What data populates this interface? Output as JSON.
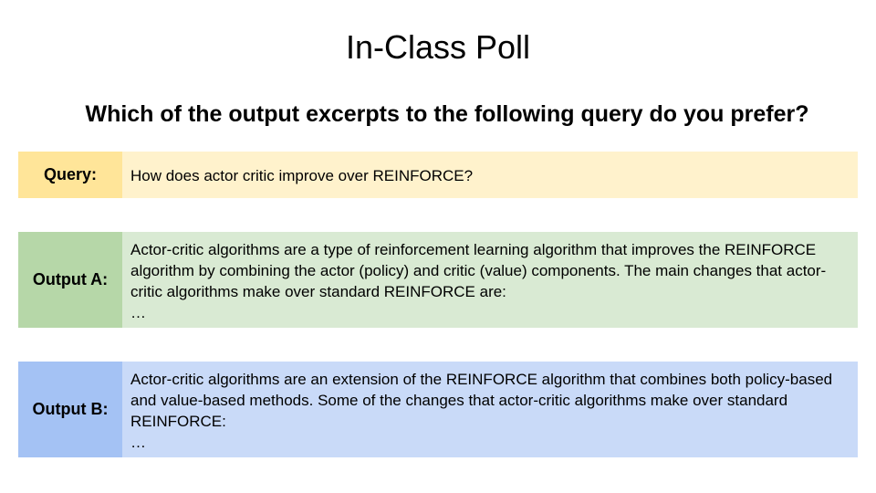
{
  "slide": {
    "title": "In-Class Poll",
    "question": "Which of the output excerpts to the following query do you prefer?"
  },
  "colors": {
    "query_label_bg": "#ffe599",
    "query_content_bg": "#fff2cc",
    "output_a_label_bg": "#b6d7a8",
    "output_a_content_bg": "#d9ead3",
    "output_b_label_bg": "#a4c2f4",
    "output_b_content_bg": "#c9daf8"
  },
  "rows": {
    "query": {
      "label": "Query:",
      "text": "How does actor critic improve over REINFORCE?"
    },
    "output_a": {
      "label": "Output A:",
      "text": "Actor-critic algorithms are a type of reinforcement learning algorithm that improves the REINFORCE algorithm by combining the actor (policy) and critic (value) components. The main changes that actor-critic algorithms make over standard REINFORCE are:",
      "ellipsis": "…"
    },
    "output_b": {
      "label": "Output B:",
      "text": "Actor-critic algorithms are an extension of the REINFORCE algorithm that combines both policy-based and value-based methods. Some of the changes that actor-critic algorithms make over standard REINFORCE:",
      "ellipsis": "…"
    }
  }
}
